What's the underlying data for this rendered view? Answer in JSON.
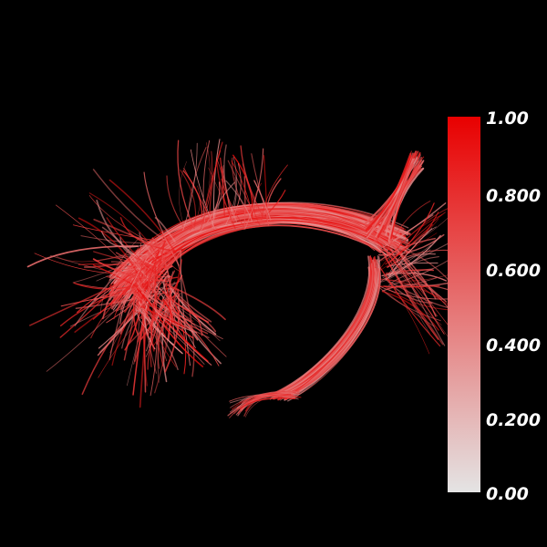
{
  "scene": {
    "background_color": "#000000",
    "object": "streamline-tract-bundle",
    "tract_color_low": "#e4e4e4",
    "tract_color_high": "#e80000"
  },
  "colorbar": {
    "low_color": "#e4e4e4",
    "high_color": "#e80000",
    "min": 0.0,
    "max": 1.0,
    "ticks": [
      {
        "value": 1.0,
        "label": "1.00"
      },
      {
        "value": 0.8,
        "label": "0.800"
      },
      {
        "value": 0.6,
        "label": "0.600"
      },
      {
        "value": 0.4,
        "label": "0.400"
      },
      {
        "value": 0.2,
        "label": "0.200"
      },
      {
        "value": 0.0,
        "label": "0.00"
      }
    ]
  }
}
